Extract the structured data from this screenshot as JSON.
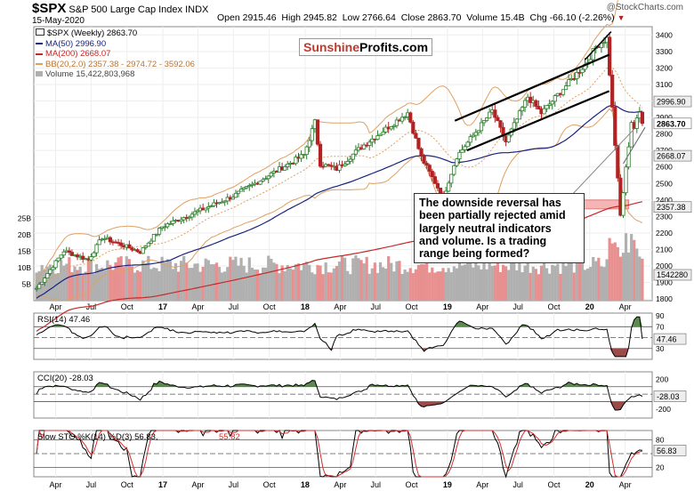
{
  "header": {
    "symbol": "$SPX",
    "name": "S&P 500 Large Cap Index",
    "exchange": "INDX",
    "date": "15-May-2020",
    "open_label": "Open 2915.46",
    "high_label": "High 2945.82",
    "low_label": "Low 2766.64",
    "close_label": "Close 2863.70",
    "volume_label": "Volume 15.4B",
    "chg_label": "Chg -66.10 (-2.26%)",
    "chg_arrow": "▼",
    "watermark": "@StockCharts.com"
  },
  "legend": {
    "price": "$SPX (Weekly) 2863.70",
    "ma50": "MA(50) 2996.90",
    "ma200": "MA(200) 2668.07",
    "bb": "BB(20,2.0) 2357.38 - 2974.72 - 3592.06",
    "volume": "Volume 15,422,803,968"
  },
  "branding": {
    "part1": "Sunshine",
    "part2": "Profits.com"
  },
  "annotation": {
    "line1": "The downside reversal has",
    "line2": "been partially rejected amid",
    "line3": "largely neutral indicators",
    "line4": "and volume. Is a trading",
    "line5": "range being formed?"
  },
  "colors": {
    "up": "#2d7d2d",
    "down": "#b22222",
    "ma50": "#1a237e",
    "ma200": "#c62828",
    "bb": "#e0a060",
    "volume_up": "#b0b0b0",
    "volume_down": "#e89090",
    "support_zone": "#f4a9a9",
    "indicator_fill_up": "#5d8a4f",
    "indicator_fill_down": "#9c4a4a"
  },
  "chart_data": {
    "type": "candlestick",
    "title": "$SPX S&P 500 Large Cap Index INDX (Weekly)",
    "date_range": [
      "2016-02",
      "2020-05-15"
    ],
    "x_tick_labels": [
      "Apr",
      "Jul",
      "Oct",
      "17",
      "Apr",
      "Jul",
      "Oct",
      "18",
      "Apr",
      "Jul",
      "Oct",
      "19",
      "Apr",
      "Jul",
      "Oct",
      "20",
      "Apr"
    ],
    "price_axis": {
      "range": [
        1790,
        3450
      ],
      "ticks": [
        1800,
        1900,
        2000,
        2100,
        2200,
        2300,
        2400,
        2500,
        2600,
        2700,
        2800,
        2900,
        3000,
        3100,
        3200,
        3300,
        3400
      ],
      "highlight_labels": [
        "2996.90",
        "2863.70",
        "2668.07",
        "2357.38"
      ]
    },
    "volume_axis": {
      "ticks": [
        "5B",
        "10B",
        "15B",
        "20B",
        "25B"
      ],
      "last_label": "1542280"
    },
    "price_anchors": [
      [
        "2016-02-12",
        1865
      ],
      [
        "2016-04-22",
        2091
      ],
      [
        "2016-06-24",
        2037
      ],
      [
        "2016-07-29",
        2173
      ],
      [
        "2016-11-04",
        2085
      ],
      [
        "2016-12-30",
        2238
      ],
      [
        "2017-06-30",
        2423
      ],
      [
        "2017-12-29",
        2673
      ],
      [
        "2018-01-26",
        2872
      ],
      [
        "2018-02-09",
        2619
      ],
      [
        "2018-03-23",
        2588
      ],
      [
        "2018-05-25",
        2721
      ],
      [
        "2018-09-21",
        2929
      ],
      [
        "2018-10-26",
        2658
      ],
      [
        "2018-12-21",
        2416
      ],
      [
        "2019-01-25",
        2664
      ],
      [
        "2019-04-26",
        2939
      ],
      [
        "2019-05-31",
        2752
      ],
      [
        "2019-07-26",
        3025
      ],
      [
        "2019-08-30",
        2926
      ],
      [
        "2019-12-27",
        3240
      ],
      [
        "2020-01-17",
        3329
      ],
      [
        "2020-02-14",
        3380
      ],
      [
        "2020-02-28",
        2954
      ],
      [
        "2020-03-20",
        2304
      ],
      [
        "2020-04-17",
        2875
      ],
      [
        "2020-04-24",
        2836
      ],
      [
        "2020-05-08",
        2930
      ],
      [
        "2020-05-15",
        2863.7
      ]
    ],
    "lines": {
      "ma50_last": 2996.9,
      "ma200_last": 2668.07,
      "bb_lower_last": 2357.38,
      "bb_mid_last": 2974.72,
      "bb_upper_last": 3592.06
    },
    "support_zone": [
      2346,
      2400
    ],
    "indicators": [
      {
        "name": "RSI(14)",
        "label": "RSI(14) 47.46",
        "last": 47.46,
        "ticks": [
          30,
          50,
          70,
          90
        ],
        "levels": [
          30,
          70
        ]
      },
      {
        "name": "CCI(20)",
        "label": "CCI(20) -28.03",
        "last": -28.03,
        "ticks": [
          -200,
          0,
          200
        ],
        "levels": [
          -100,
          100
        ]
      },
      {
        "name": "Slow STO %K(14) %D(3)",
        "label": "Slow STO %K(14) %D(3) 56.83,",
        "label_d": "55.82",
        "last_k": 56.83,
        "last_d": 55.82,
        "ticks": [
          20,
          80
        ],
        "levels": [
          20,
          80
        ]
      }
    ]
  }
}
